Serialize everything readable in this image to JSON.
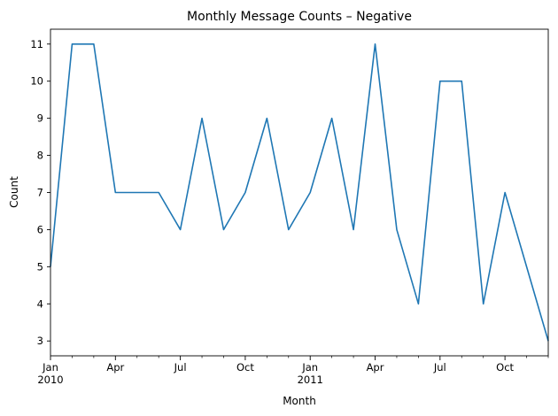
{
  "chart_data": {
    "type": "line",
    "title": "Monthly Message Counts – Negative",
    "xlabel": "Month",
    "ylabel": "Count",
    "x": [
      "2010-01",
      "2010-02",
      "2010-03",
      "2010-04",
      "2010-05",
      "2010-06",
      "2010-07",
      "2010-08",
      "2010-09",
      "2010-10",
      "2010-11",
      "2010-12",
      "2011-01",
      "2011-02",
      "2011-03",
      "2011-04",
      "2011-05",
      "2011-06",
      "2011-07",
      "2011-08",
      "2011-09",
      "2011-10",
      "2011-11",
      "2011-12"
    ],
    "values": [
      5,
      11,
      11,
      7,
      7,
      7,
      6,
      9,
      6,
      7,
      9,
      6,
      7,
      9,
      6,
      11,
      6,
      4,
      10,
      10,
      4,
      7,
      5,
      3
    ],
    "xlim": [
      "2010-01",
      "2011-12"
    ],
    "ylim": [
      2.6,
      11.4
    ],
    "y_ticks": [
      "3",
      "4",
      "5",
      "6",
      "7",
      "8",
      "9",
      "10",
      "11"
    ],
    "x_ticks": [
      {
        "month": "2010-01",
        "label": "Jan",
        "sublabel": "2010"
      },
      {
        "month": "2010-04",
        "label": "Apr",
        "sublabel": ""
      },
      {
        "month": "2010-07",
        "label": "Jul",
        "sublabel": ""
      },
      {
        "month": "2010-10",
        "label": "Oct",
        "sublabel": ""
      },
      {
        "month": "2011-01",
        "label": "Jan",
        "sublabel": "2011"
      },
      {
        "month": "2011-04",
        "label": "Apr",
        "sublabel": ""
      },
      {
        "month": "2011-07",
        "label": "Jul",
        "sublabel": ""
      },
      {
        "month": "2011-10",
        "label": "Oct",
        "sublabel": ""
      }
    ],
    "grid": false,
    "legend": "none",
    "line_color": "#1f77b4"
  }
}
